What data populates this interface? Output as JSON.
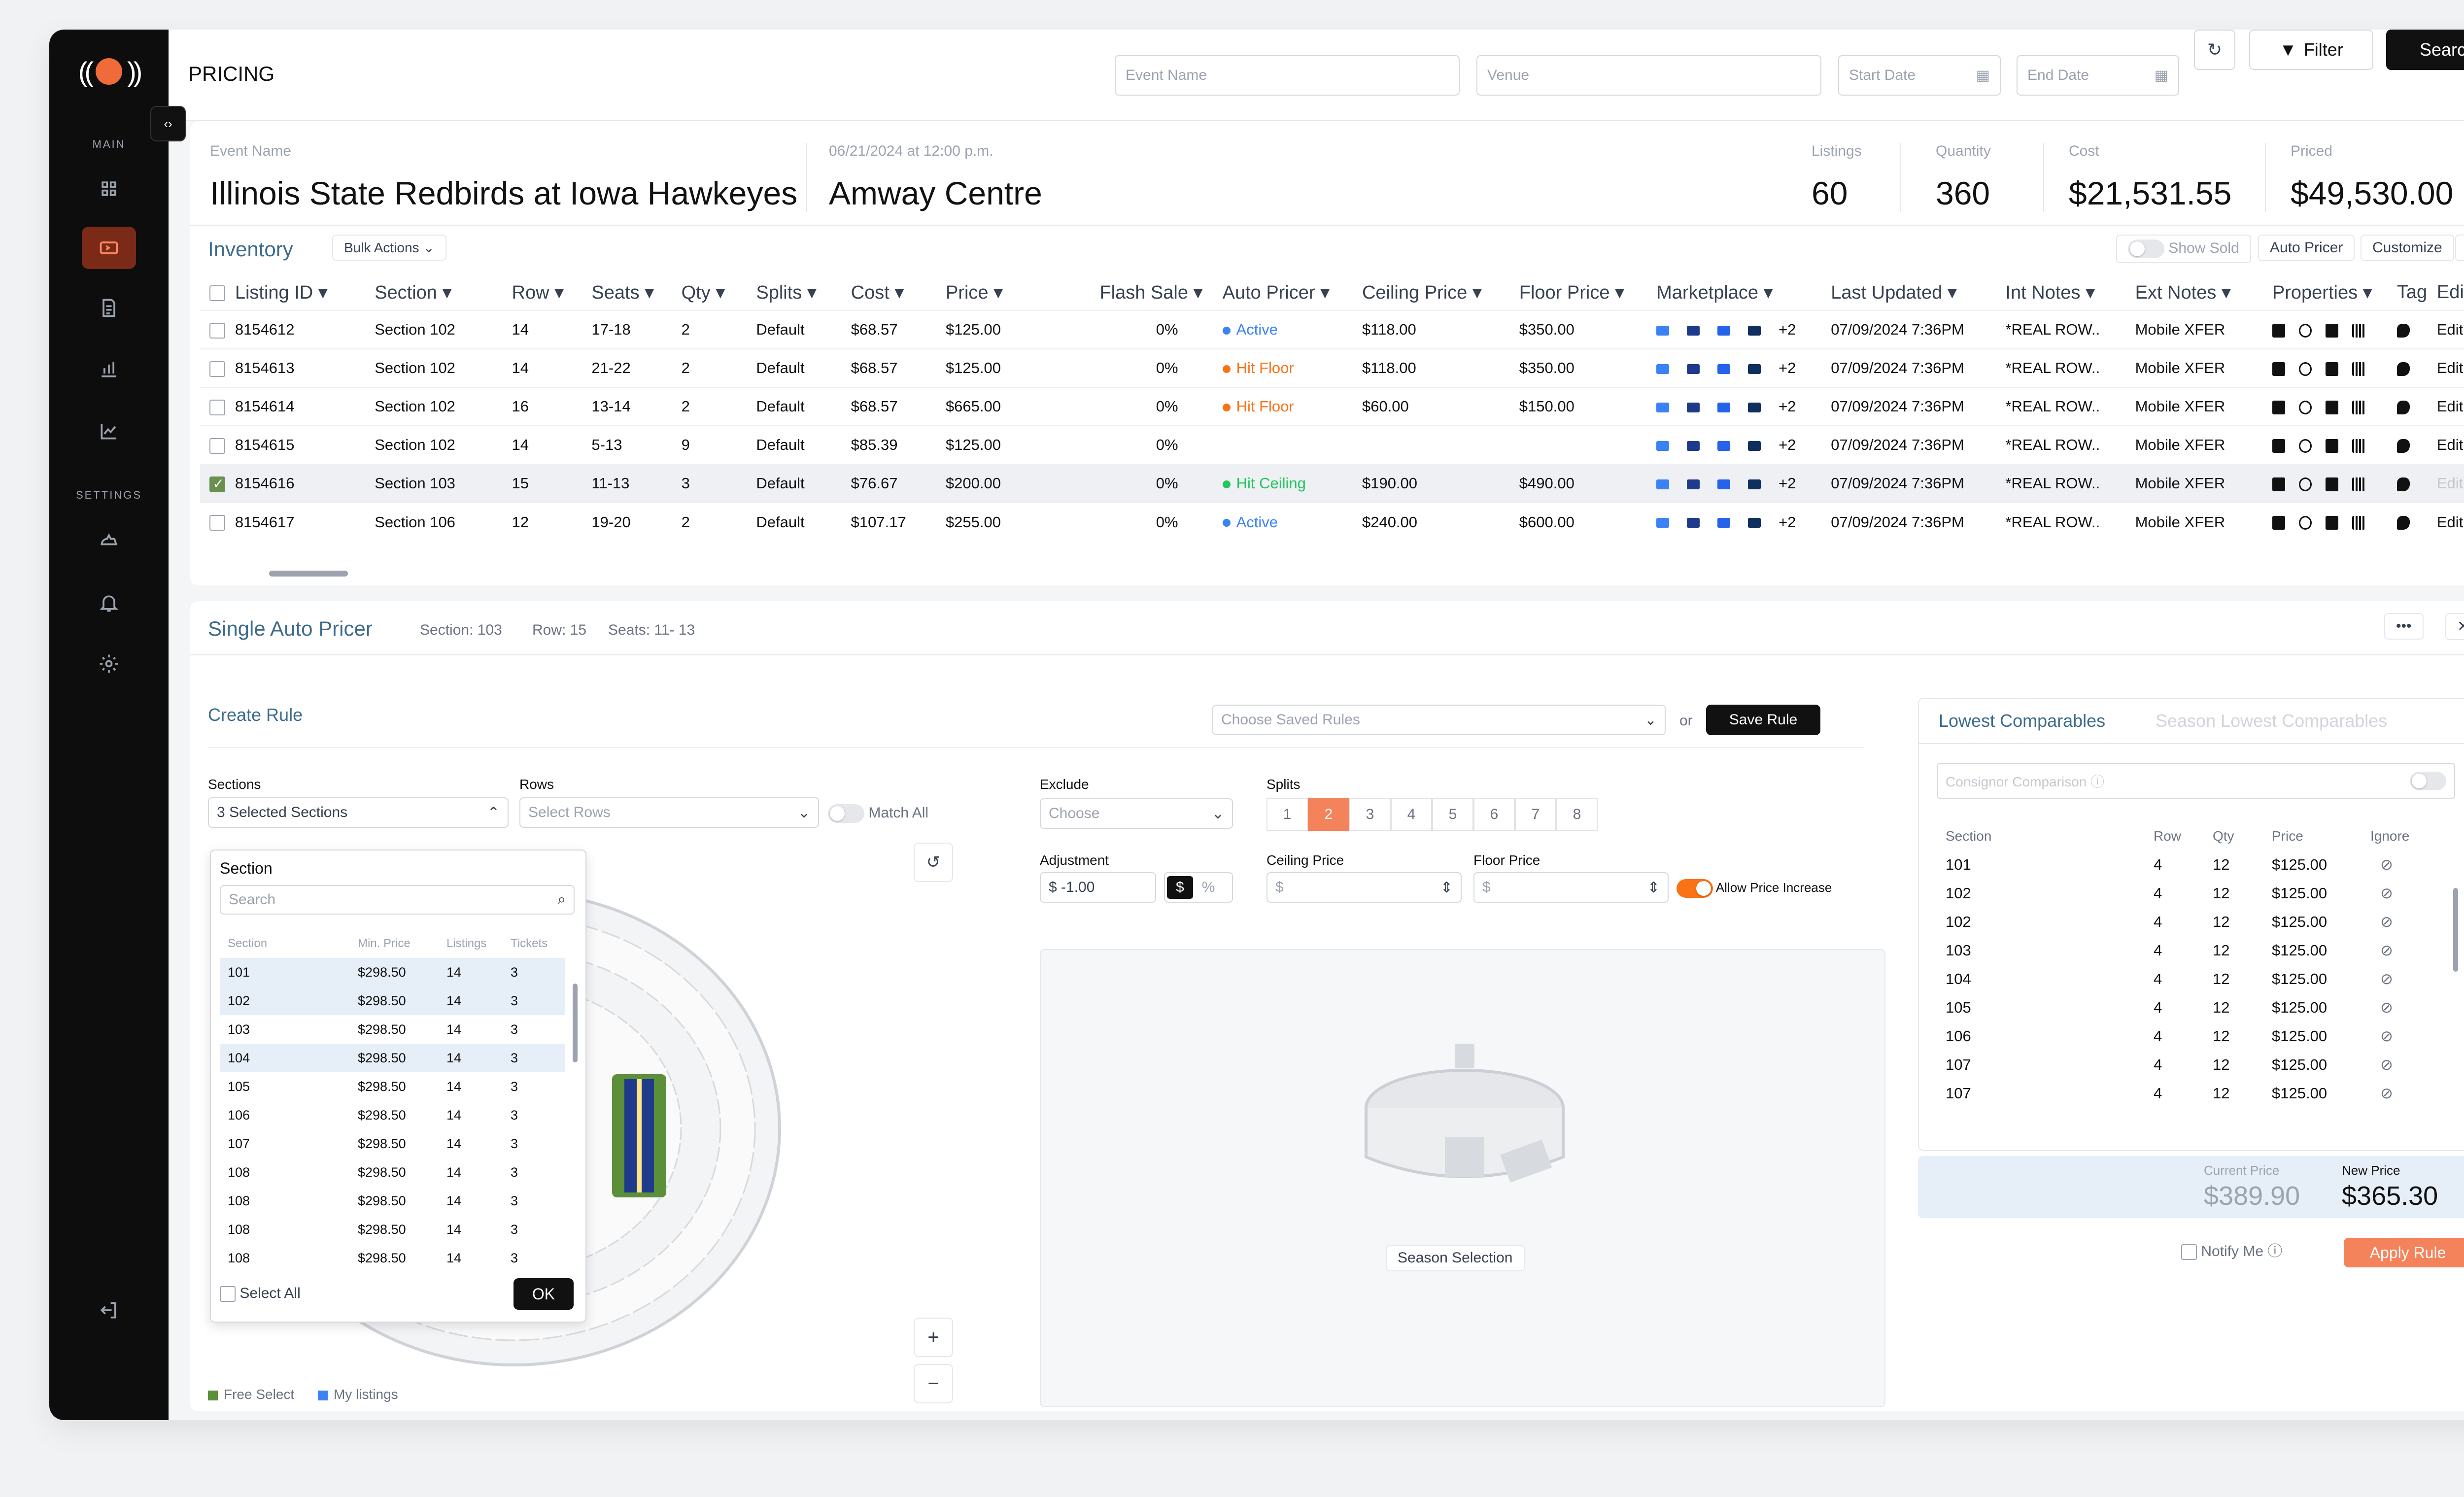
{
  "page_title": "PRICING",
  "search": {
    "event_placeholder": "Event Name",
    "venue_placeholder": "Venue",
    "start_placeholder": "Start Date",
    "end_placeholder": "End Date",
    "filter_label": "Filter",
    "search_label": "Search"
  },
  "sidebar": {
    "main_label": "MAIN",
    "settings_label": "SETTINGS"
  },
  "event": {
    "name_label": "Event Name",
    "name": "Illinois State Redbirds at Iowa Hawkeyes",
    "datetime": "06/21/2024 at 12:00 p.m.",
    "venue": "Amway Centre"
  },
  "stats": [
    {
      "label": "Listings",
      "value": "60"
    },
    {
      "label": "Quantity",
      "value": "360"
    },
    {
      "label": "Cost",
      "value": "$21,531.55"
    },
    {
      "label": "Priced",
      "value": "$49,530.00"
    }
  ],
  "inventory": {
    "title": "Inventory",
    "bulk_actions": "Bulk Actions",
    "show_sold": "Show Sold",
    "auto_pricer": "Auto Pricer",
    "customize": "Customize",
    "columns": [
      "Listing ID",
      "Section",
      "Row",
      "Seats",
      "Qty",
      "Splits",
      "Cost",
      "Price",
      "Flash Sale",
      "Auto Pricer",
      "Ceiling Price",
      "Floor Price",
      "Marketplace",
      "Last Updated",
      "Int Notes",
      "Ext Notes",
      "Properties",
      "Tag",
      "Edit"
    ],
    "rows": [
      {
        "id": "8154612",
        "section": "Section 102",
        "row": "14",
        "seats": "17-18",
        "qty": "2",
        "splits": "Default",
        "cost": "$68.57",
        "price": "$125.00",
        "flash": "0%",
        "auto": "Active",
        "ceiling": "$118.00",
        "floor": "$350.00",
        "more": "+2",
        "updated": "07/09/2024 7:36PM",
        "int": "*REAL ROW..",
        "ext": "Mobile XFER",
        "edit": "Edit",
        "checked": false
      },
      {
        "id": "8154613",
        "section": "Section 102",
        "row": "14",
        "seats": "21-22",
        "qty": "2",
        "splits": "Default",
        "cost": "$68.57",
        "price": "$125.00",
        "flash": "0%",
        "auto": "Hit Floor",
        "ceiling": "$118.00",
        "floor": "$350.00",
        "more": "+2",
        "updated": "07/09/2024 7:36PM",
        "int": "*REAL ROW..",
        "ext": "Mobile XFER",
        "edit": "Edit",
        "checked": false
      },
      {
        "id": "8154614",
        "section": "Section 102",
        "row": "16",
        "seats": "13-14",
        "qty": "2",
        "splits": "Default",
        "cost": "$68.57",
        "price": "$665.00",
        "flash": "0%",
        "auto": "Hit Floor",
        "ceiling": "$60.00",
        "floor": "$150.00",
        "more": "+2",
        "updated": "07/09/2024 7:36PM",
        "int": "*REAL ROW..",
        "ext": "Mobile XFER",
        "edit": "Edit",
        "checked": false
      },
      {
        "id": "8154615",
        "section": "Section 102",
        "row": "14",
        "seats": "5-13",
        "qty": "9",
        "splits": "Default",
        "cost": "$85.39",
        "price": "$125.00",
        "flash": "0%",
        "auto": "",
        "ceiling": "",
        "floor": "",
        "more": "+2",
        "updated": "07/09/2024 7:36PM",
        "int": "*REAL ROW..",
        "ext": "Mobile XFER",
        "edit": "Edit",
        "checked": false
      },
      {
        "id": "8154616",
        "section": "Section 103",
        "row": "15",
        "seats": "11-13",
        "qty": "3",
        "splits": "Default",
        "cost": "$76.67",
        "price": "$200.00",
        "flash": "0%",
        "auto": "Hit Ceiling",
        "ceiling": "$190.00",
        "floor": "$490.00",
        "more": "+2",
        "updated": "07/09/2024 7:36PM",
        "int": "*REAL ROW..",
        "ext": "Mobile XFER",
        "edit": "Edit",
        "checked": true
      },
      {
        "id": "8154617",
        "section": "Section 106",
        "row": "12",
        "seats": "19-20",
        "qty": "2",
        "splits": "Default",
        "cost": "$107.17",
        "price": "$255.00",
        "flash": "0%",
        "auto": "Active",
        "ceiling": "$240.00",
        "floor": "$600.00",
        "more": "+2",
        "updated": "07/09/2024 7:36PM",
        "int": "*REAL ROW..",
        "ext": "Mobile XFER",
        "edit": "Edit",
        "checked": false
      }
    ]
  },
  "colors": {
    "active": "#3b82f6",
    "hit_floor": "#f97316",
    "hit_ceiling": "#22c55e",
    "accent": "#f4825a",
    "field_green": "#5c8f3a",
    "stadium_blue": "#1e3a8a"
  },
  "sap": {
    "title": "Single Auto Pricer",
    "section": "Section: 103",
    "row": "Row: 15",
    "seats": "Seats: 11- 13",
    "create_rule": "Create Rule",
    "saved_rules_placeholder": "Choose Saved Rules",
    "or": "or",
    "save_rule": "Save Rule",
    "sections_label": "Sections",
    "sections_value": "3 Selected Sections",
    "rows_label": "Rows",
    "rows_placeholder": "Select Rows",
    "match_all": "Match All",
    "exclude_label": "Exclude",
    "exclude_placeholder": "Choose",
    "splits_label": "Splits",
    "splits": [
      "1",
      "2",
      "3",
      "4",
      "5",
      "6",
      "7",
      "8"
    ],
    "adjustment_label": "Adjustment",
    "adjustment_value": "$ -1.00",
    "dollar": "$",
    "percent": "%",
    "ceiling_label": "Ceiling Price",
    "ceiling_placeholder": "$",
    "floor_label": "Floor Price",
    "floor_placeholder": "$",
    "allow_increase": "Allow Price Increase",
    "season_selection": "Season Selection",
    "legend_free": "Free Select",
    "legend_mine": "My listings"
  },
  "section_dropdown": {
    "title": "Section",
    "search_placeholder": "Search",
    "headers": [
      "Section",
      "Min. Price",
      "Listings",
      "Tickets"
    ],
    "rows": [
      [
        "101",
        "$298.50",
        "14",
        "3"
      ],
      [
        "102",
        "$298.50",
        "14",
        "3"
      ],
      [
        "103",
        "$298.50",
        "14",
        "3"
      ],
      [
        "104",
        "$298.50",
        "14",
        "3"
      ],
      [
        "105",
        "$298.50",
        "14",
        "3"
      ],
      [
        "106",
        "$298.50",
        "14",
        "3"
      ],
      [
        "107",
        "$298.50",
        "14",
        "3"
      ],
      [
        "108",
        "$298.50",
        "14",
        "3"
      ],
      [
        "108",
        "$298.50",
        "14",
        "3"
      ],
      [
        "108",
        "$298.50",
        "14",
        "3"
      ],
      [
        "108",
        "$298.50",
        "14",
        "3"
      ]
    ],
    "select_all": "Select All",
    "ok": "OK"
  },
  "comparables": {
    "tab_active": "Lowest Comparables",
    "tab_inactive": "Season Lowest Comparables",
    "consignor": "Consignor Comparison",
    "headers": [
      "Section",
      "Row",
      "Qty",
      "Price",
      "Ignore"
    ],
    "rows": [
      [
        "101",
        "4",
        "12",
        "$125.00"
      ],
      [
        "102",
        "4",
        "12",
        "$125.00"
      ],
      [
        "102",
        "4",
        "12",
        "$125.00"
      ],
      [
        "103",
        "4",
        "12",
        "$125.00"
      ],
      [
        "104",
        "4",
        "12",
        "$125.00"
      ],
      [
        "105",
        "4",
        "12",
        "$125.00"
      ],
      [
        "106",
        "4",
        "12",
        "$125.00"
      ],
      [
        "107",
        "4",
        "12",
        "$125.00"
      ],
      [
        "107",
        "4",
        "12",
        "$125.00"
      ]
    ],
    "current_label": "Current Price",
    "current_value": "$389.90",
    "new_label": "New Price",
    "new_value": "$365.30",
    "notify": "Notify Me",
    "apply": "Apply Rule"
  }
}
